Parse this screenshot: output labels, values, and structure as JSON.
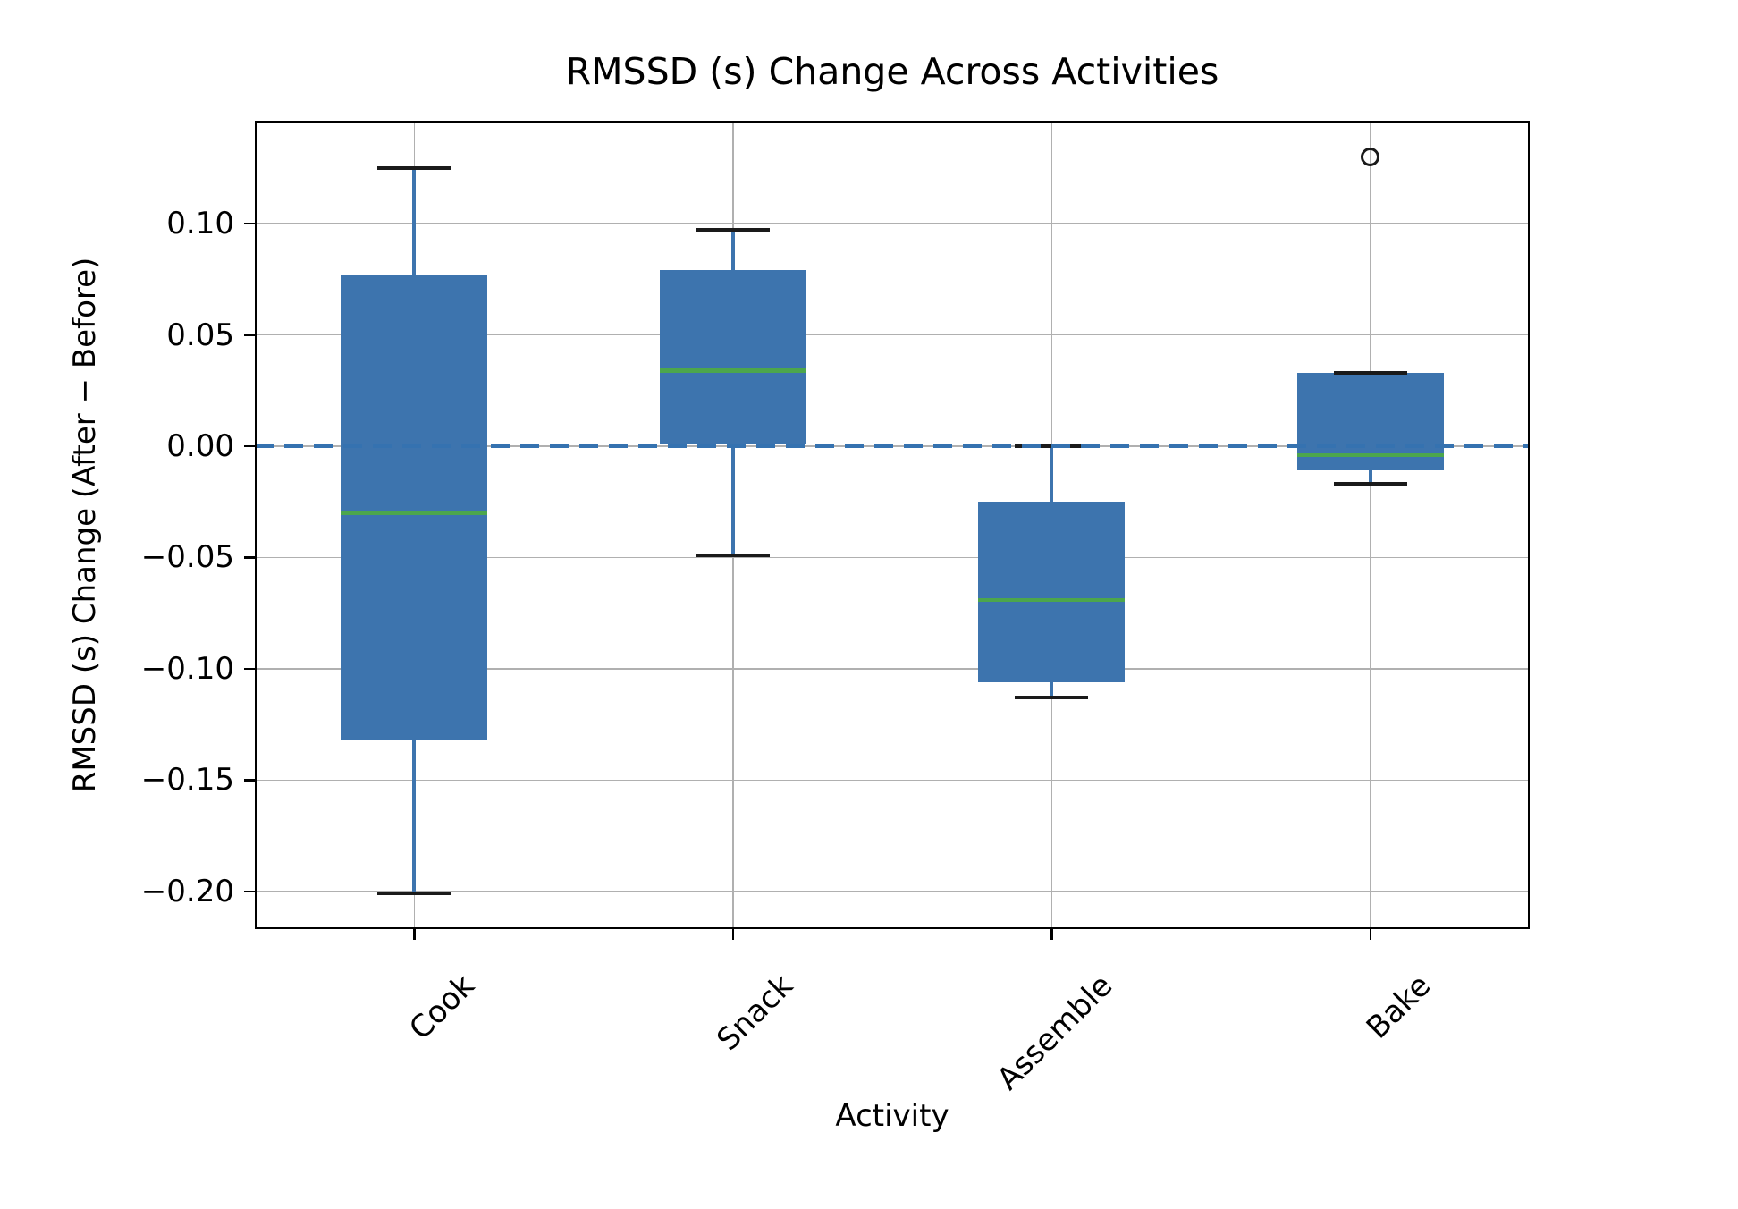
{
  "chart_data": {
    "type": "boxplot",
    "title": "RMSSD (s) Change Across Activities",
    "xlabel": "Activity",
    "ylabel": "RMSSD (s) Change (After − Before)",
    "categories": [
      "Cook",
      "Snack",
      "Assemble",
      "Bake"
    ],
    "yticks": [
      {
        "value": 0.1,
        "label": "0.10"
      },
      {
        "value": 0.05,
        "label": "0.05"
      },
      {
        "value": 0.0,
        "label": "0.00"
      },
      {
        "value": -0.05,
        "label": "−0.05"
      },
      {
        "value": -0.1,
        "label": "−0.10"
      },
      {
        "value": -0.15,
        "label": "−0.15"
      },
      {
        "value": -0.2,
        "label": "−0.20"
      }
    ],
    "ylim": [
      -0.2169,
      0.1462
    ],
    "grid": true,
    "legend": "none",
    "zero_reference_line": {
      "value": 0.0,
      "style": "dashed"
    },
    "series": [
      {
        "label": "Cook",
        "whislo": -0.201,
        "q1": -0.132,
        "med": -0.03,
        "q3": 0.077,
        "whishi": 0.125,
        "fliers": []
      },
      {
        "label": "Snack",
        "whislo": -0.049,
        "q1": 0.001,
        "med": 0.034,
        "q3": 0.079,
        "whishi": 0.097,
        "fliers": []
      },
      {
        "label": "Assemble",
        "whislo": -0.113,
        "q1": -0.106,
        "med": -0.069,
        "q3": -0.025,
        "whishi": 0.0,
        "fliers": []
      },
      {
        "label": "Bake",
        "whislo": -0.017,
        "q1": -0.011,
        "med": -0.004,
        "q3": 0.033,
        "whishi": 0.033,
        "fliers": [
          0.13
        ]
      }
    ],
    "colors": {
      "box_fill": "#3d74ae",
      "whisker": "#3d74ae",
      "cap": "#1a1a1a",
      "median": "#4ca64c",
      "zero_line": "#3572b0",
      "grid": "#b0b0b0",
      "spine": "#000000",
      "flier_edge": "#1a1a1a"
    }
  }
}
